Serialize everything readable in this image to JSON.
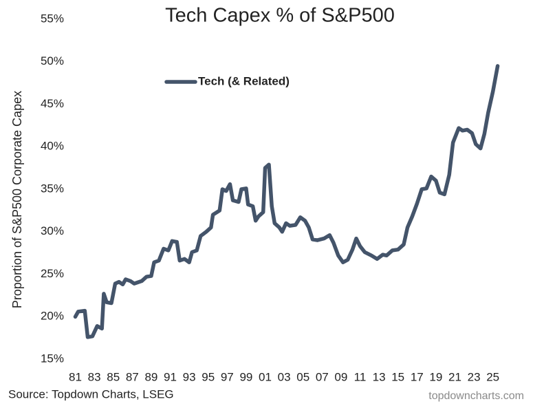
{
  "chart_data": {
    "type": "line",
    "title": "Tech Capex % of S&P500",
    "y_label": "Proportion of S&P500 Corporate Capex",
    "source": "Source: Topdown Charts, LSEG",
    "watermark": "topdowncharts.com",
    "legend": "upper left",
    "grid": false,
    "x": [
      1981.0,
      1981.3,
      1982.0,
      1982.3,
      1982.8,
      1983.3,
      1983.8,
      1984.0,
      1984.3,
      1984.8,
      1985.2,
      1985.6,
      1986.0,
      1986.3,
      1986.8,
      1987.2,
      1988.0,
      1988.5,
      1989.0,
      1989.3,
      1989.8,
      1990.3,
      1990.8,
      1991.2,
      1991.7,
      1992.0,
      1992.5,
      1993.0,
      1993.3,
      1993.8,
      1994.2,
      1994.8,
      1995.3,
      1995.5,
      1996.2,
      1996.5,
      1996.9,
      1997.3,
      1997.6,
      1998.2,
      1998.5,
      1999.0,
      1999.2,
      1999.7,
      2000.0,
      2000.3,
      2000.8,
      2001.0,
      2001.4,
      2001.7,
      2002.0,
      2002.5,
      2002.8,
      2003.2,
      2003.6,
      2004.2,
      2004.7,
      2005.2,
      2005.6,
      2006.0,
      2006.5,
      2007.2,
      2007.8,
      2008.2,
      2008.7,
      2009.2,
      2009.7,
      2010.2,
      2010.6,
      2011.0,
      2011.5,
      2012.2,
      2012.8,
      2013.4,
      2013.8,
      2014.4,
      2015.0,
      2015.6,
      2016.0,
      2016.5,
      2017.0,
      2017.5,
      2018.0,
      2018.5,
      2019.0,
      2019.4,
      2019.9,
      2020.4,
      2020.8,
      2021.4,
      2021.8,
      2022.3,
      2022.8,
      2023.2,
      2023.7,
      2024.1,
      2024.5,
      2025.0,
      2025.5
    ],
    "series": [
      {
        "name": "Tech (& Related)",
        "color": "#44546a",
        "values": [
          20.0,
          20.6,
          20.7,
          17.6,
          17.7,
          18.9,
          18.6,
          22.7,
          21.7,
          21.6,
          23.9,
          24.1,
          23.8,
          24.4,
          24.2,
          23.9,
          24.2,
          24.7,
          24.8,
          26.4,
          26.6,
          28.0,
          27.8,
          28.9,
          28.8,
          26.6,
          26.8,
          26.4,
          27.6,
          27.8,
          29.5,
          30.0,
          30.5,
          32.0,
          32.5,
          35.0,
          34.8,
          35.6,
          33.7,
          33.5,
          35.0,
          35.1,
          33.2,
          33.0,
          31.3,
          31.8,
          32.3,
          37.5,
          37.9,
          33.0,
          31.0,
          30.5,
          30.0,
          31.0,
          30.7,
          30.8,
          31.7,
          31.3,
          30.5,
          29.1,
          29.0,
          29.2,
          29.6,
          28.7,
          27.2,
          26.4,
          26.7,
          27.9,
          29.2,
          28.3,
          27.6,
          27.2,
          26.8,
          27.3,
          27.2,
          27.8,
          27.9,
          28.5,
          30.5,
          31.8,
          33.3,
          35.0,
          35.1,
          36.5,
          36.0,
          34.6,
          34.4,
          36.7,
          40.5,
          42.2,
          41.9,
          42.0,
          41.6,
          40.3,
          39.8,
          41.5,
          44.0,
          46.5,
          49.5
        ]
      }
    ],
    "xlim": [
      1980.6,
      2026.4
    ],
    "xticks": [
      {
        "value": 1981,
        "label": "81"
      },
      {
        "value": 1983,
        "label": "83"
      },
      {
        "value": 1985,
        "label": "85"
      },
      {
        "value": 1987,
        "label": "87"
      },
      {
        "value": 1989,
        "label": "89"
      },
      {
        "value": 1991,
        "label": "91"
      },
      {
        "value": 1993,
        "label": "93"
      },
      {
        "value": 1995,
        "label": "95"
      },
      {
        "value": 1997,
        "label": "97"
      },
      {
        "value": 1999,
        "label": "99"
      },
      {
        "value": 2001,
        "label": "01"
      },
      {
        "value": 2003,
        "label": "03"
      },
      {
        "value": 2005,
        "label": "05"
      },
      {
        "value": 2007,
        "label": "07"
      },
      {
        "value": 2009,
        "label": "09"
      },
      {
        "value": 2011,
        "label": "11"
      },
      {
        "value": 2013,
        "label": "13"
      },
      {
        "value": 2015,
        "label": "15"
      },
      {
        "value": 2017,
        "label": "17"
      },
      {
        "value": 2019,
        "label": "19"
      },
      {
        "value": 2021,
        "label": "21"
      },
      {
        "value": 2023,
        "label": "23"
      },
      {
        "value": 2025,
        "label": "25"
      }
    ],
    "ylim": [
      15,
      55
    ],
    "yticks": [
      {
        "value": 15,
        "label": "15%"
      },
      {
        "value": 20,
        "label": "20%"
      },
      {
        "value": 25,
        "label": "25%"
      },
      {
        "value": 30,
        "label": "30%"
      },
      {
        "value": 35,
        "label": "35%"
      },
      {
        "value": 40,
        "label": "40%"
      },
      {
        "value": 45,
        "label": "45%"
      },
      {
        "value": 50,
        "label": "50%"
      },
      {
        "value": 55,
        "label": "55%"
      }
    ]
  }
}
